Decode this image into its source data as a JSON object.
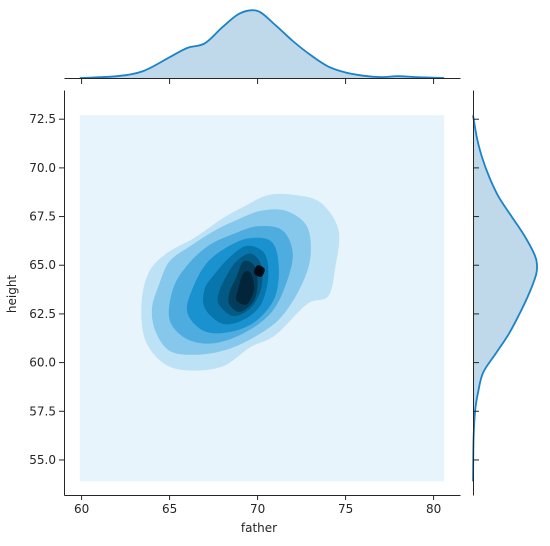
{
  "chart_data": {
    "type": "jointplot-kde",
    "xlabel": "father",
    "ylabel": "height",
    "xlim": [
      59,
      81.5
    ],
    "ylim": [
      53.2,
      74.0
    ],
    "x_ticks": [
      60,
      65,
      70,
      75,
      80
    ],
    "y_ticks": [
      55.0,
      57.5,
      60.0,
      62.5,
      65.0,
      67.5,
      70.0,
      72.5
    ],
    "x_tick_labels": [
      "60",
      "65",
      "70",
      "75",
      "80"
    ],
    "y_tick_labels": [
      "55.0",
      "57.5",
      "60.0",
      "62.5",
      "65.0",
      "67.5",
      "70.0",
      "72.5"
    ],
    "grid": false,
    "kde_extent": {
      "x": [
        59.9,
        80.6
      ],
      "y": [
        53.9,
        72.7
      ]
    },
    "contour_levels": [
      {
        "fill": "#e8f4fc",
        "points": [
          [
            59.9,
            53.9
          ],
          [
            80.6,
            53.9
          ],
          [
            80.6,
            72.7
          ],
          [
            59.9,
            72.7
          ]
        ]
      },
      {
        "fill": "#bde2f5",
        "points": [
          [
            63.6,
            61.2
          ],
          [
            64.6,
            60.0
          ],
          [
            66.0,
            59.6
          ],
          [
            68.0,
            59.8
          ],
          [
            69.6,
            60.8
          ],
          [
            71.0,
            61.4
          ],
          [
            72.8,
            63.0
          ],
          [
            74.0,
            63.4
          ],
          [
            74.4,
            64.8
          ],
          [
            74.6,
            66.8
          ],
          [
            73.6,
            68.2
          ],
          [
            72.2,
            68.6
          ],
          [
            70.6,
            68.6
          ],
          [
            69.2,
            68.0
          ],
          [
            68.0,
            67.4
          ],
          [
            66.4,
            66.4
          ],
          [
            64.8,
            65.6
          ],
          [
            63.8,
            64.6
          ],
          [
            63.4,
            63.0
          ]
        ]
      },
      {
        "fill": "#86c7ec",
        "points": [
          [
            64.2,
            61.6
          ],
          [
            65.0,
            60.6
          ],
          [
            66.4,
            60.4
          ],
          [
            68.0,
            60.6
          ],
          [
            69.6,
            61.2
          ],
          [
            71.2,
            62.2
          ],
          [
            72.4,
            63.8
          ],
          [
            73.0,
            65.4
          ],
          [
            72.8,
            67.0
          ],
          [
            71.6,
            67.8
          ],
          [
            70.2,
            67.8
          ],
          [
            69.0,
            67.4
          ],
          [
            67.6,
            66.8
          ],
          [
            66.2,
            66.0
          ],
          [
            65.0,
            65.2
          ],
          [
            64.4,
            64.0
          ],
          [
            64.0,
            62.8
          ]
        ]
      },
      {
        "fill": "#4eadde",
        "points": [
          [
            65.0,
            62.2
          ],
          [
            66.0,
            61.2
          ],
          [
            67.6,
            61.0
          ],
          [
            69.4,
            61.6
          ],
          [
            70.8,
            62.6
          ],
          [
            71.6,
            64.0
          ],
          [
            72.0,
            65.6
          ],
          [
            71.4,
            66.8
          ],
          [
            70.0,
            67.0
          ],
          [
            68.6,
            66.6
          ],
          [
            67.2,
            66.0
          ],
          [
            66.0,
            65.0
          ],
          [
            65.2,
            63.8
          ]
        ]
      },
      {
        "fill": "#1a92cf",
        "points": [
          [
            66.0,
            62.6
          ],
          [
            67.0,
            61.6
          ],
          [
            68.6,
            61.6
          ],
          [
            70.0,
            62.2
          ],
          [
            71.0,
            63.4
          ],
          [
            71.2,
            65.0
          ],
          [
            70.8,
            66.2
          ],
          [
            69.6,
            66.4
          ],
          [
            68.4,
            66.0
          ],
          [
            67.2,
            65.2
          ],
          [
            66.4,
            64.0
          ]
        ]
      },
      {
        "fill": "#0776ad",
        "points": [
          [
            67.0,
            62.8
          ],
          [
            68.0,
            62.0
          ],
          [
            69.2,
            62.2
          ],
          [
            70.2,
            63.0
          ],
          [
            70.6,
            64.4
          ],
          [
            70.4,
            65.6
          ],
          [
            69.4,
            66.0
          ],
          [
            68.4,
            65.4
          ],
          [
            67.6,
            64.6
          ],
          [
            67.0,
            63.8
          ]
        ]
      },
      {
        "fill": "#035a84",
        "points": [
          [
            67.8,
            63.0
          ],
          [
            68.6,
            62.4
          ],
          [
            69.6,
            62.8
          ],
          [
            70.2,
            63.8
          ],
          [
            70.2,
            65.0
          ],
          [
            69.6,
            65.6
          ],
          [
            68.8,
            65.2
          ],
          [
            68.2,
            64.4
          ],
          [
            67.8,
            63.6
          ]
        ]
      },
      {
        "fill": "#023d5c",
        "points": [
          [
            68.4,
            63.0
          ],
          [
            69.0,
            62.6
          ],
          [
            69.8,
            63.2
          ],
          [
            70.0,
            64.2
          ],
          [
            69.8,
            65.0
          ],
          [
            69.2,
            65.2
          ],
          [
            68.8,
            64.4
          ],
          [
            68.4,
            63.6
          ]
        ]
      },
      {
        "fill": "#02253a",
        "points": [
          [
            68.8,
            63.2
          ],
          [
            69.4,
            63.0
          ],
          [
            69.8,
            63.8
          ],
          [
            69.6,
            64.6
          ],
          [
            69.2,
            64.6
          ],
          [
            68.9,
            63.8
          ]
        ]
      },
      {
        "fill": "#000b14",
        "points": [
          [
            69.8,
            64.6
          ],
          [
            70.2,
            64.4
          ],
          [
            70.4,
            64.8
          ],
          [
            70.0,
            65.0
          ]
        ]
      }
    ],
    "marginal_x": {
      "x": [
        59.9,
        62,
        63.5,
        65,
        66,
        67,
        68,
        69,
        70,
        71,
        72,
        73,
        74,
        75,
        76,
        77,
        78,
        79,
        80.6
      ],
      "density": [
        0.0,
        0.004,
        0.015,
        0.045,
        0.065,
        0.075,
        0.11,
        0.14,
        0.145,
        0.115,
        0.08,
        0.05,
        0.025,
        0.012,
        0.005,
        0.002,
        0.004,
        0.002,
        0.0
      ]
    },
    "marginal_y": {
      "y": [
        53.9,
        56.0,
        57.5,
        58.5,
        59.5,
        60.5,
        61.5,
        62.5,
        63.5,
        64.5,
        65.0,
        65.5,
        66.5,
        67.5,
        68.5,
        69.5,
        70.5,
        71.5,
        72.7
      ],
      "density": [
        0.0,
        0.001,
        0.004,
        0.01,
        0.02,
        0.045,
        0.07,
        0.09,
        0.108,
        0.122,
        0.124,
        0.12,
        0.1,
        0.075,
        0.05,
        0.032,
        0.018,
        0.008,
        0.0
      ]
    },
    "colors": {
      "line": "#1b83c6",
      "fill": "#bfd8ea"
    }
  }
}
